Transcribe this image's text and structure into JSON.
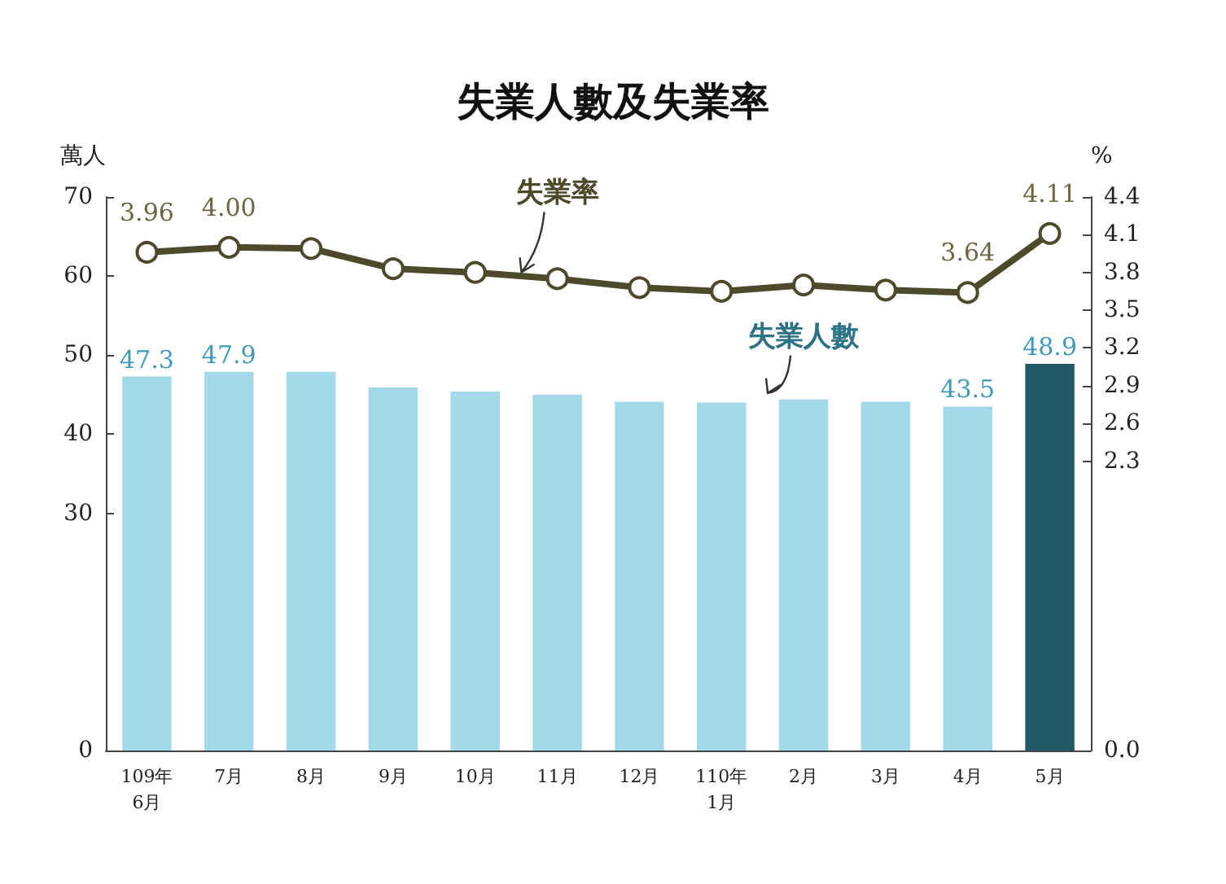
{
  "chart_data": {
    "type": "bar",
    "title": "失業人數及失業率",
    "ylabel": "萬人",
    "y2label": "%",
    "categories": [
      "109年\n6月",
      "7月",
      "8月",
      "9月",
      "10月",
      "11月",
      "12月",
      "110年\n1月",
      "2月",
      "3月",
      "4月",
      "5月"
    ],
    "series": [
      {
        "name": "失業人數",
        "color": "#a3d9e8",
        "colors": [
          "#a3d9e8",
          "#a3d9e8",
          "#a3d9e8",
          "#a3d9e8",
          "#a3d9e8",
          "#a3d9e8",
          "#a3d9e8",
          "#a3d9e8",
          "#a3d9e8",
          "#a3d9e8",
          "#a3d9e8",
          "#225966"
        ],
        "values": [
          47.3,
          47.9,
          47.9,
          45.9,
          45.4,
          45.0,
          44.1,
          44.0,
          44.4,
          44.1,
          43.5,
          48.9
        ],
        "value_labels": [
          "47.3",
          "47.9",
          null,
          null,
          null,
          null,
          null,
          null,
          null,
          null,
          "43.5",
          "48.9"
        ]
      },
      {
        "name": "失業率",
        "type": "line",
        "axis": "y2",
        "color": "#4d4a2c",
        "marker": "circle",
        "values": [
          3.96,
          4.0,
          3.99,
          3.83,
          3.8,
          3.75,
          3.68,
          3.65,
          3.7,
          3.66,
          3.64,
          4.11
        ],
        "value_labels": [
          "3.96",
          "4.00",
          null,
          null,
          null,
          null,
          null,
          null,
          null,
          null,
          "3.64",
          "4.11"
        ]
      }
    ],
    "ylim": [
      0,
      70
    ],
    "yticks": [
      0,
      30,
      40,
      50,
      60,
      70
    ],
    "y2lim": [
      0,
      4.4
    ],
    "y2ticks": [
      {
        "value": 0,
        "label": "0.0"
      },
      2.3,
      2.6,
      2.9,
      3.2,
      3.5,
      3.8,
      4.1,
      4.4
    ],
    "grid": false,
    "legend": false
  }
}
